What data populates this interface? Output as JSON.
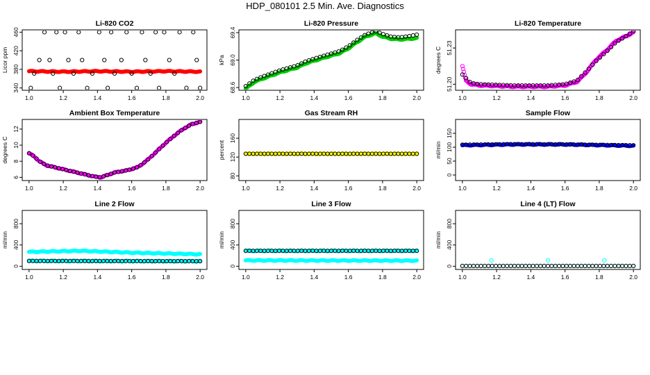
{
  "page": {
    "title": "HDP_080101  2.5 Min. Ave. Diagnostics"
  },
  "colors": {
    "axis": "#000000",
    "black": "#000000",
    "red": "#ff0000",
    "green": "#00cc00",
    "magenta": "#ff00ff",
    "yellow": "#ffff00",
    "blue": "#0000ff",
    "cyan": "#00ffff"
  },
  "chart_data": [
    {
      "id": "li820-co2",
      "type": "scatter",
      "title": "Li-820 CO2",
      "ylabel": "Licor ppm",
      "xlim": [
        1.0,
        2.0
      ],
      "ylim": [
        335,
        465
      ],
      "xticks": [
        "1.0",
        "1.2",
        "1.4",
        "1.6",
        "1.8",
        "2.0"
      ],
      "yticks": [
        "340",
        "380",
        "420",
        "460"
      ],
      "series": [
        {
          "name": "co2",
          "color": "red",
          "style": "dense",
          "marker": "filled",
          "keys": [
            [
              1.0,
              376
            ],
            [
              1.2,
              375
            ],
            [
              1.4,
              376
            ],
            [
              1.6,
              375
            ],
            [
              1.8,
              376
            ],
            [
              2.0,
              375
            ]
          ]
        },
        {
          "name": "scatter",
          "color": "black",
          "marker": "open",
          "points": [
            [
              1.01,
              340
            ],
            [
              1.03,
              371
            ],
            [
              1.06,
              400
            ],
            [
              1.09,
              460
            ],
            [
              1.12,
              400
            ],
            [
              1.14,
              371
            ],
            [
              1.16,
              460
            ],
            [
              1.18,
              340
            ],
            [
              1.21,
              460
            ],
            [
              1.23,
              400
            ],
            [
              1.26,
              371
            ],
            [
              1.29,
              460
            ],
            [
              1.31,
              400
            ],
            [
              1.34,
              340
            ],
            [
              1.37,
              371
            ],
            [
              1.41,
              460
            ],
            [
              1.44,
              400
            ],
            [
              1.46,
              340
            ],
            [
              1.48,
              460
            ],
            [
              1.5,
              371
            ],
            [
              1.54,
              400
            ],
            [
              1.57,
              460
            ],
            [
              1.6,
              371
            ],
            [
              1.63,
              340
            ],
            [
              1.66,
              460
            ],
            [
              1.68,
              400
            ],
            [
              1.71,
              371
            ],
            [
              1.74,
              460
            ],
            [
              1.76,
              340
            ],
            [
              1.79,
              460
            ],
            [
              1.82,
              400
            ],
            [
              1.85,
              371
            ],
            [
              1.88,
              460
            ],
            [
              1.92,
              340
            ],
            [
              1.96,
              460
            ],
            [
              1.98,
              400
            ],
            [
              2.0,
              340
            ]
          ]
        }
      ]
    },
    {
      "id": "li820-pressure",
      "type": "scatter",
      "title": "Li-820 Pressure",
      "ylabel": "kPa",
      "xlim": [
        1.0,
        2.0
      ],
      "ylim": [
        68.56,
        69.44
      ],
      "xticks": [
        "1.0",
        "1.2",
        "1.4",
        "1.6",
        "1.8",
        "2.0"
      ],
      "yticks": [
        "68.6",
        "69.0",
        "69.4"
      ],
      "series": [
        {
          "name": "pressure",
          "color": "green",
          "style": "dense",
          "marker": "filled",
          "keys": [
            [
              1.0,
              68.58
            ],
            [
              1.05,
              68.68
            ],
            [
              1.1,
              68.73
            ],
            [
              1.2,
              68.82
            ],
            [
              1.3,
              68.89
            ],
            [
              1.35,
              68.95
            ],
            [
              1.4,
              68.99
            ],
            [
              1.48,
              69.05
            ],
            [
              1.55,
              69.1
            ],
            [
              1.6,
              69.17
            ],
            [
              1.65,
              69.26
            ],
            [
              1.7,
              69.34
            ],
            [
              1.76,
              69.39
            ],
            [
              1.8,
              69.34
            ],
            [
              1.85,
              69.31
            ],
            [
              1.9,
              69.3
            ],
            [
              1.96,
              69.31
            ],
            [
              2.0,
              69.32
            ]
          ]
        },
        {
          "name": "pressure-avg",
          "color": "black",
          "style": "markers",
          "marker": "open",
          "keys": [
            [
              1.0,
              68.62
            ],
            [
              1.05,
              68.71
            ],
            [
              1.1,
              68.76
            ],
            [
              1.2,
              68.85
            ],
            [
              1.3,
              68.92
            ],
            [
              1.35,
              68.98
            ],
            [
              1.4,
              69.02
            ],
            [
              1.48,
              69.08
            ],
            [
              1.55,
              69.13
            ],
            [
              1.6,
              69.2
            ],
            [
              1.65,
              69.29
            ],
            [
              1.7,
              69.37
            ],
            [
              1.76,
              69.42
            ],
            [
              1.8,
              69.38
            ],
            [
              1.85,
              69.34
            ],
            [
              1.9,
              69.33
            ],
            [
              1.96,
              69.35
            ],
            [
              2.0,
              69.37
            ]
          ]
        }
      ]
    },
    {
      "id": "li820-temperature",
      "type": "scatter",
      "title": "Li-820 Temperature",
      "ylabel": "degrees C",
      "xlim": [
        1.0,
        2.0
      ],
      "ylim": [
        51.195,
        51.245
      ],
      "xticks": [
        "1.0",
        "1.2",
        "1.4",
        "1.6",
        "1.8",
        "2.0"
      ],
      "yticks": [
        "51.20",
        "51.23"
      ],
      "series": [
        {
          "name": "temperature",
          "color": "magenta",
          "style": "dense",
          "marker": "open",
          "keys": [
            [
              1.0,
              51.215
            ],
            [
              1.02,
              51.203
            ],
            [
              1.05,
              51.2
            ],
            [
              1.1,
              51.199
            ],
            [
              1.3,
              51.198
            ],
            [
              1.5,
              51.198
            ],
            [
              1.6,
              51.199
            ],
            [
              1.67,
              51.202
            ],
            [
              1.72,
              51.209
            ],
            [
              1.78,
              51.22
            ],
            [
              1.85,
              51.229
            ],
            [
              1.9,
              51.236
            ],
            [
              1.96,
              51.24
            ],
            [
              2.0,
              51.243
            ]
          ]
        },
        {
          "name": "temperature-avg",
          "color": "black",
          "style": "markers",
          "marker": "open",
          "keys": [
            [
              1.0,
              51.208
            ],
            [
              1.05,
              51.201
            ],
            [
              1.1,
              51.2
            ],
            [
              1.3,
              51.199
            ],
            [
              1.5,
              51.199
            ],
            [
              1.6,
              51.2
            ],
            [
              1.67,
              51.203
            ],
            [
              1.72,
              51.21
            ],
            [
              1.78,
              51.219
            ],
            [
              1.85,
              51.228
            ],
            [
              1.9,
              51.235
            ],
            [
              1.96,
              51.24
            ],
            [
              2.0,
              51.244
            ]
          ]
        }
      ]
    },
    {
      "id": "ambient-box-temperature",
      "type": "scatter",
      "title": "Ambient Box Temperature",
      "ylabel": "degrees C",
      "xlim": [
        1.0,
        2.0
      ],
      "ylim": [
        5.6,
        13.2
      ],
      "xticks": [
        "1.0",
        "1.2",
        "1.4",
        "1.6",
        "1.8",
        "2.0"
      ],
      "yticks": [
        "6",
        "8",
        "10",
        "12"
      ],
      "series": [
        {
          "name": "ambient",
          "color": "magenta",
          "style": "dense",
          "marker": "filled",
          "keys": [
            [
              1.0,
              9.0
            ],
            [
              1.03,
              8.6
            ],
            [
              1.06,
              8.0
            ],
            [
              1.1,
              7.5
            ],
            [
              1.2,
              7.0
            ],
            [
              1.3,
              6.5
            ],
            [
              1.38,
              6.1
            ],
            [
              1.42,
              6.0
            ],
            [
              1.46,
              6.3
            ],
            [
              1.5,
              6.6
            ],
            [
              1.58,
              6.9
            ],
            [
              1.64,
              7.3
            ],
            [
              1.7,
              8.3
            ],
            [
              1.75,
              9.3
            ],
            [
              1.8,
              10.3
            ],
            [
              1.85,
              11.2
            ],
            [
              1.9,
              12.0
            ],
            [
              1.95,
              12.6
            ],
            [
              2.0,
              12.9
            ]
          ]
        },
        {
          "name": "ambient-avg",
          "color": "black",
          "style": "markers",
          "marker": "open",
          "keys": [
            [
              1.0,
              9.0
            ],
            [
              1.03,
              8.6
            ],
            [
              1.06,
              8.0
            ],
            [
              1.1,
              7.5
            ],
            [
              1.2,
              7.0
            ],
            [
              1.3,
              6.5
            ],
            [
              1.38,
              6.1
            ],
            [
              1.42,
              6.0
            ],
            [
              1.46,
              6.3
            ],
            [
              1.5,
              6.6
            ],
            [
              1.58,
              6.9
            ],
            [
              1.64,
              7.3
            ],
            [
              1.7,
              8.3
            ],
            [
              1.75,
              9.3
            ],
            [
              1.8,
              10.3
            ],
            [
              1.85,
              11.2
            ],
            [
              1.9,
              12.0
            ],
            [
              1.95,
              12.6
            ],
            [
              2.0,
              12.9
            ]
          ]
        }
      ]
    },
    {
      "id": "gas-stream-rh",
      "type": "scatter",
      "title": "Gas Stream RH",
      "ylabel": "percent",
      "xlim": [
        1.0,
        2.0
      ],
      "ylim": [
        70,
        200
      ],
      "xticks": [
        "1.0",
        "1.2",
        "1.4",
        "1.6",
        "1.8",
        "2.0"
      ],
      "yticks": [
        "80",
        "120",
        "160"
      ],
      "series": [
        {
          "name": "rh",
          "color": "yellow",
          "style": "dense",
          "marker": "filled",
          "keys": [
            [
              1.0,
              127
            ],
            [
              2.0,
              127
            ]
          ]
        },
        {
          "name": "rh-avg",
          "color": "black",
          "style": "markers",
          "marker": "open",
          "keys": [
            [
              1.0,
              127
            ],
            [
              2.0,
              127
            ]
          ]
        }
      ]
    },
    {
      "id": "sample-flow",
      "type": "scatter",
      "title": "Sample Flow",
      "ylabel": "ml/min",
      "xlim": [
        1.0,
        2.0
      ],
      "ylim": [
        -20,
        200
      ],
      "xticks": [
        "1.0",
        "1.2",
        "1.4",
        "1.6",
        "1.8",
        "2.0"
      ],
      "yticks": [
        "0",
        "50",
        "100",
        "150"
      ],
      "series": [
        {
          "name": "sample",
          "color": "blue",
          "style": "dense",
          "marker": "filled",
          "keys": [
            [
              1.0,
              107
            ],
            [
              1.3,
              110
            ],
            [
              1.6,
              110
            ],
            [
              2.0,
              105
            ]
          ]
        },
        {
          "name": "sample-avg",
          "color": "black",
          "style": "markers",
          "marker": "open",
          "keys": [
            [
              1.0,
              109
            ],
            [
              1.3,
              111
            ],
            [
              1.6,
              110
            ],
            [
              2.0,
              107
            ]
          ]
        }
      ]
    },
    {
      "id": "line-2-flow",
      "type": "scatter",
      "title": "Line 2 Flow",
      "ylabel": "ml/min",
      "xlim": [
        1.0,
        2.0
      ],
      "ylim": [
        -60,
        1050
      ],
      "xticks": [
        "1.0",
        "1.2",
        "1.4",
        "1.6",
        "1.8",
        "2.0"
      ],
      "yticks": [
        "0",
        "400",
        "800"
      ],
      "series": [
        {
          "name": "line2-high",
          "color": "cyan",
          "style": "dense",
          "marker": "filled",
          "keys": [
            [
              1.0,
              270
            ],
            [
              1.3,
              290
            ],
            [
              1.6,
              255
            ],
            [
              2.0,
              225
            ]
          ]
        },
        {
          "name": "line2-low",
          "color": "cyan",
          "style": "dense",
          "marker": "filled",
          "keys": [
            [
              1.0,
              100
            ],
            [
              2.0,
              95
            ]
          ]
        },
        {
          "name": "line2-avg",
          "color": "black",
          "style": "markers",
          "marker": "open",
          "keys": [
            [
              1.0,
              100
            ],
            [
              2.0,
              95
            ]
          ]
        }
      ]
    },
    {
      "id": "line-3-flow",
      "type": "scatter",
      "title": "Line 3 Flow",
      "ylabel": "ml/min",
      "xlim": [
        1.0,
        2.0
      ],
      "ylim": [
        -60,
        1050
      ],
      "xticks": [
        "1.0",
        "1.2",
        "1.4",
        "1.6",
        "1.8",
        "2.0"
      ],
      "yticks": [
        "0",
        "400",
        "800"
      ],
      "series": [
        {
          "name": "line3-high",
          "color": "cyan",
          "style": "dense",
          "marker": "filled",
          "keys": [
            [
              1.0,
              290
            ],
            [
              2.0,
              290
            ]
          ]
        },
        {
          "name": "line3-low",
          "color": "cyan",
          "style": "dense",
          "marker": "filled",
          "keys": [
            [
              1.0,
              110
            ],
            [
              2.0,
              105
            ]
          ]
        },
        {
          "name": "line3-avg",
          "color": "black",
          "style": "markers",
          "marker": "open",
          "keys": [
            [
              1.0,
              290
            ],
            [
              2.0,
              290
            ]
          ]
        }
      ]
    },
    {
      "id": "line-4-lt-flow",
      "type": "scatter",
      "title": "Line 4 (LT) Flow",
      "ylabel": "ml/min",
      "xlim": [
        1.0,
        2.0
      ],
      "ylim": [
        -60,
        1050
      ],
      "xticks": [
        "1.0",
        "1.2",
        "1.4",
        "1.6",
        "1.8",
        "2.0"
      ],
      "yticks": [
        "0",
        "400",
        "800"
      ],
      "series": [
        {
          "name": "line4",
          "color": "cyan",
          "style": "markers",
          "marker": "open",
          "keys": [
            [
              1.0,
              5
            ],
            [
              2.0,
              5
            ]
          ]
        },
        {
          "name": "line4-avg",
          "color": "black",
          "style": "markers",
          "marker": "open",
          "keys": [
            [
              1.02,
              5
            ],
            [
              2.0,
              5
            ]
          ]
        },
        {
          "name": "line4-spikes",
          "color": "cyan",
          "marker": "open",
          "points": [
            [
              1.17,
              110
            ],
            [
              1.5,
              110
            ],
            [
              1.83,
              110
            ]
          ]
        }
      ]
    }
  ]
}
